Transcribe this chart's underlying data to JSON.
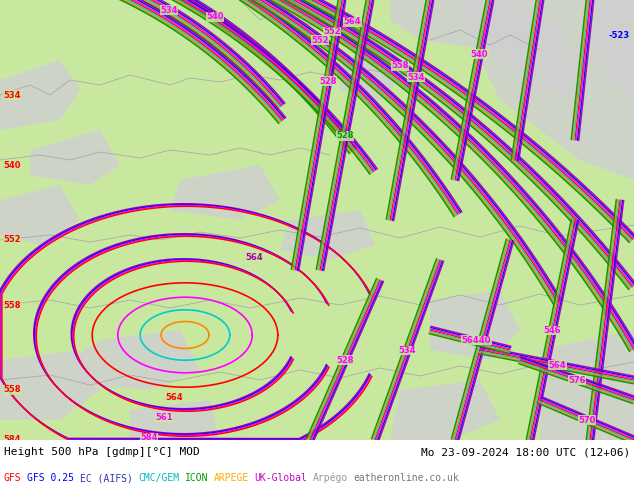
{
  "title_left": "Height 500 hPa [gdmp][°C] MOD",
  "title_right": "Mo 23-09-2024 18:00 UTC (12+06)",
  "fig_width": 6.34,
  "fig_height": 4.9,
  "dpi": 100,
  "land_color": "#c8e8a0",
  "sea_color": "#d0d0d0",
  "border_color": "#aaaaaa",
  "model_colors": {
    "gfs": "#ff0000",
    "gfs025": "#ff00ff",
    "ec": "#0000ff",
    "cmc": "#00cccc",
    "icon": "#009900",
    "arpege": "#ff8800",
    "uk": "#aa00aa"
  },
  "legend": [
    {
      "label": "GFS",
      "color": "#ff0000"
    },
    {
      "label": "GFS 0.25",
      "color": "#0000ff"
    },
    {
      "label": "EC (AIFS)",
      "color": "#3333bb"
    },
    {
      "label": "CMC/GEM",
      "color": "#00bbbb"
    },
    {
      "label": "ICON",
      "color": "#009900"
    },
    {
      "label": "ARPEGE",
      "color": "#ffaa00"
    },
    {
      "label": "UK-Global",
      "color": "#cc00cc"
    },
    {
      "label": "Arpégo",
      "color": "#888888"
    },
    {
      "label": "eatheronline.co.uk",
      "color": "#666666"
    }
  ]
}
